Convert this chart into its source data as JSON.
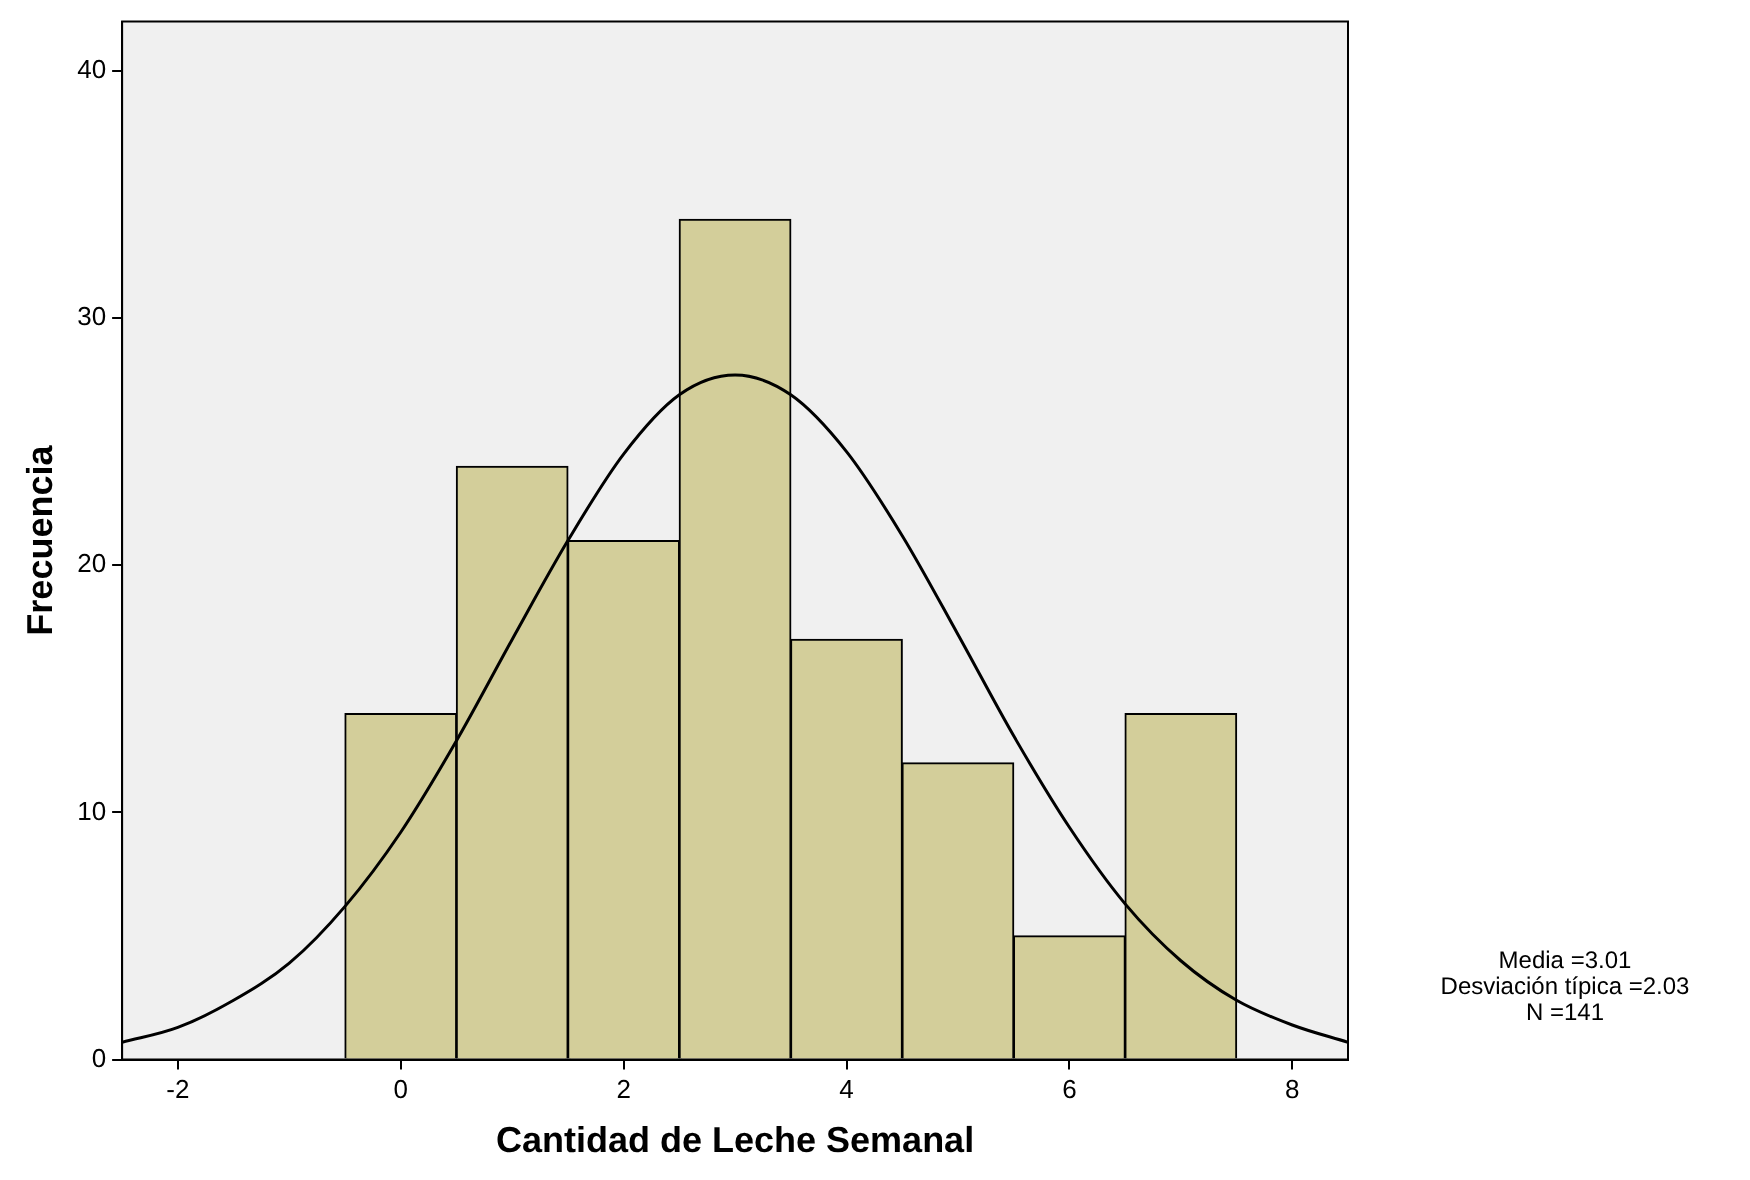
{
  "chart_data": {
    "type": "histogram",
    "xlabel": "Cantidad de Leche Semanal",
    "ylabel": "Frecuencia",
    "series": [
      {
        "color": "#d3ce9a",
        "bins": [
          -0.5,
          0.5,
          1.5,
          2.5,
          3.5,
          4.5,
          5.5,
          6.5,
          7.5
        ],
        "values": [
          14,
          24,
          21,
          34,
          17,
          12,
          5,
          14
        ]
      },
      {
        "type": "line",
        "color": "#000000",
        "x": [
          -2.5,
          -2,
          -1.5,
          -1,
          -0.5,
          0,
          0.5,
          1,
          1.5,
          2,
          2.5,
          3,
          3.5,
          4,
          4.5,
          5,
          5.5,
          6,
          6.5,
          7,
          7.5,
          8,
          8.5
        ],
        "values": [
          0.7,
          1.3,
          2.4,
          3.9,
          6.2,
          9.2,
          12.9,
          17.0,
          21.0,
          24.5,
          26.9,
          27.7,
          26.9,
          24.6,
          21.2,
          17.2,
          13.1,
          9.4,
          6.3,
          4.0,
          2.4,
          1.4,
          0.7
        ]
      }
    ],
    "xlim": [
      -2.5,
      8.5
    ],
    "xticks": [
      -2,
      0,
      2,
      4,
      6,
      8
    ],
    "ylim": [
      0,
      42
    ],
    "yticks": [
      0,
      10,
      20,
      30,
      40
    ],
    "grid": false,
    "legend": false,
    "marker": "none",
    "annotations": [
      "Media =3.01",
      "Desviación típica =2.03",
      "N =141"
    ]
  }
}
